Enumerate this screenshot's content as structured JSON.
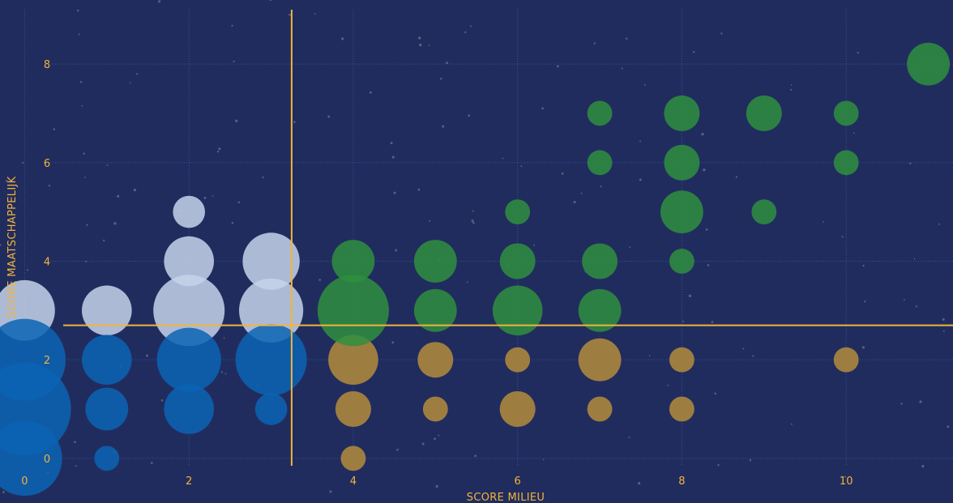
{
  "chart_data": {
    "type": "scatter",
    "xlabel": "SCORE MILIEU",
    "ylabel": "SCORE MAATSCHAPPELIJK",
    "xlim": [
      -0.3,
      11.3
    ],
    "ylim": [
      -0.15,
      9.3
    ],
    "x_ticks": [
      0,
      2,
      4,
      6,
      8,
      10
    ],
    "y_ticks": [
      0,
      2,
      4,
      6,
      8
    ],
    "grid": true,
    "thresholds": {
      "x": 3.25,
      "y": 2.7
    },
    "colors": {
      "background": "#212c5e",
      "accent": "#f0b43c",
      "white_quadrant": "#c5d3ea",
      "blue_quadrant": "#0a64b4",
      "gold_quadrant": "#b48c3c",
      "green_quadrant": "#2e8f3e"
    },
    "series": [
      {
        "color": "#c5d3ea",
        "points": [
          {
            "x": 0,
            "y": 3,
            "size": 1.7
          },
          {
            "x": 1,
            "y": 3,
            "size": 1.4
          },
          {
            "x": 2,
            "y": 5,
            "size": 0.9
          },
          {
            "x": 2,
            "y": 4,
            "size": 1.4
          },
          {
            "x": 2,
            "y": 3,
            "size": 2.0
          },
          {
            "x": 3,
            "y": 4,
            "size": 1.6
          },
          {
            "x": 3,
            "y": 3,
            "size": 1.8
          }
        ]
      },
      {
        "color": "#0a64b4",
        "points": [
          {
            "x": 0,
            "y": 2,
            "size": 2.3
          },
          {
            "x": 0,
            "y": 1,
            "size": 2.6
          },
          {
            "x": 0,
            "y": 0,
            "size": 2.1
          },
          {
            "x": 1,
            "y": 2,
            "size": 1.4
          },
          {
            "x": 1,
            "y": 1,
            "size": 1.2
          },
          {
            "x": 1,
            "y": 0,
            "size": 0.7
          },
          {
            "x": 2,
            "y": 2,
            "size": 1.8
          },
          {
            "x": 2,
            "y": 1,
            "size": 1.4
          },
          {
            "x": 3,
            "y": 2,
            "size": 2.0
          },
          {
            "x": 3,
            "y": 1,
            "size": 0.9
          }
        ]
      },
      {
        "color": "#b48c3c",
        "points": [
          {
            "x": 4,
            "y": 2,
            "size": 1.4
          },
          {
            "x": 4,
            "y": 1,
            "size": 1.0
          },
          {
            "x": 4,
            "y": 0,
            "size": 0.7
          },
          {
            "x": 5,
            "y": 2,
            "size": 1.0
          },
          {
            "x": 5,
            "y": 1,
            "size": 0.7
          },
          {
            "x": 6,
            "y": 2,
            "size": 0.7
          },
          {
            "x": 6,
            "y": 1,
            "size": 1.0
          },
          {
            "x": 7,
            "y": 2,
            "size": 1.2
          },
          {
            "x": 7,
            "y": 1,
            "size": 0.7
          },
          {
            "x": 8,
            "y": 2,
            "size": 0.7
          },
          {
            "x": 8,
            "y": 1,
            "size": 0.7
          },
          {
            "x": 10,
            "y": 2,
            "size": 0.7
          }
        ]
      },
      {
        "color": "#2e8f3e",
        "points": [
          {
            "x": 4,
            "y": 4,
            "size": 1.2
          },
          {
            "x": 4,
            "y": 3,
            "size": 2.0
          },
          {
            "x": 5,
            "y": 4,
            "size": 1.2
          },
          {
            "x": 5,
            "y": 3,
            "size": 1.2
          },
          {
            "x": 6,
            "y": 5,
            "size": 0.7
          },
          {
            "x": 6,
            "y": 4,
            "size": 1.0
          },
          {
            "x": 6,
            "y": 3,
            "size": 1.4
          },
          {
            "x": 7,
            "y": 7,
            "size": 0.7
          },
          {
            "x": 7,
            "y": 6,
            "size": 0.7
          },
          {
            "x": 7,
            "y": 4,
            "size": 1.0
          },
          {
            "x": 7,
            "y": 3,
            "size": 1.2
          },
          {
            "x": 8,
            "y": 7,
            "size": 1.0
          },
          {
            "x": 8,
            "y": 6,
            "size": 1.0
          },
          {
            "x": 8,
            "y": 5,
            "size": 1.2
          },
          {
            "x": 8,
            "y": 4,
            "size": 0.7
          },
          {
            "x": 9,
            "y": 7,
            "size": 1.0
          },
          {
            "x": 9,
            "y": 5,
            "size": 0.7
          },
          {
            "x": 10,
            "y": 7,
            "size": 0.7
          },
          {
            "x": 10,
            "y": 6,
            "size": 0.7
          },
          {
            "x": 11,
            "y": 8,
            "size": 1.2
          }
        ]
      }
    ]
  }
}
